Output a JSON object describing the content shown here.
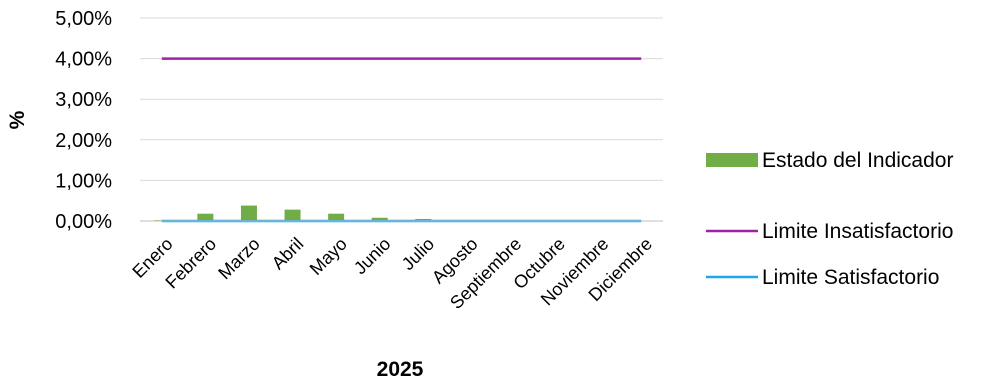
{
  "chart_data": {
    "type": "bar",
    "xlabel": "2025",
    "ylabel": "%",
    "ylim": [
      0,
      5
    ],
    "y_tick_labels": [
      "0,00%",
      "1,00%",
      "2,00%",
      "3,00%",
      "4,00%",
      "5,00%"
    ],
    "y_ticks": [
      0,
      1,
      2,
      3,
      4,
      5
    ],
    "grid": true,
    "legend_position": "right",
    "categories": [
      "Enero",
      "Febrero",
      "Marzo",
      "Abril",
      "Mayo",
      "Junio",
      "Julio",
      "Agosto",
      "Septiembre",
      "Octubre",
      "Noviembre",
      "Diciembre"
    ],
    "series": [
      {
        "name": "Estado del Indicador",
        "kind": "bar",
        "color": "#70AD47",
        "values": [
          0.02,
          0.18,
          0.38,
          0.28,
          0.18,
          0.08,
          0.05,
          0,
          0,
          0,
          0,
          0
        ]
      },
      {
        "name": "Limite Insatisfactorio",
        "kind": "line",
        "color": "#A020A8",
        "values": [
          4,
          4,
          4,
          4,
          4,
          4,
          4,
          4,
          4,
          4,
          4,
          4
        ]
      },
      {
        "name": "Limite Satisfactorio",
        "kind": "line",
        "color": "#1EA7E8",
        "values": [
          0,
          0,
          0,
          0,
          0,
          0,
          0,
          0,
          0,
          0,
          0,
          0
        ]
      }
    ]
  }
}
